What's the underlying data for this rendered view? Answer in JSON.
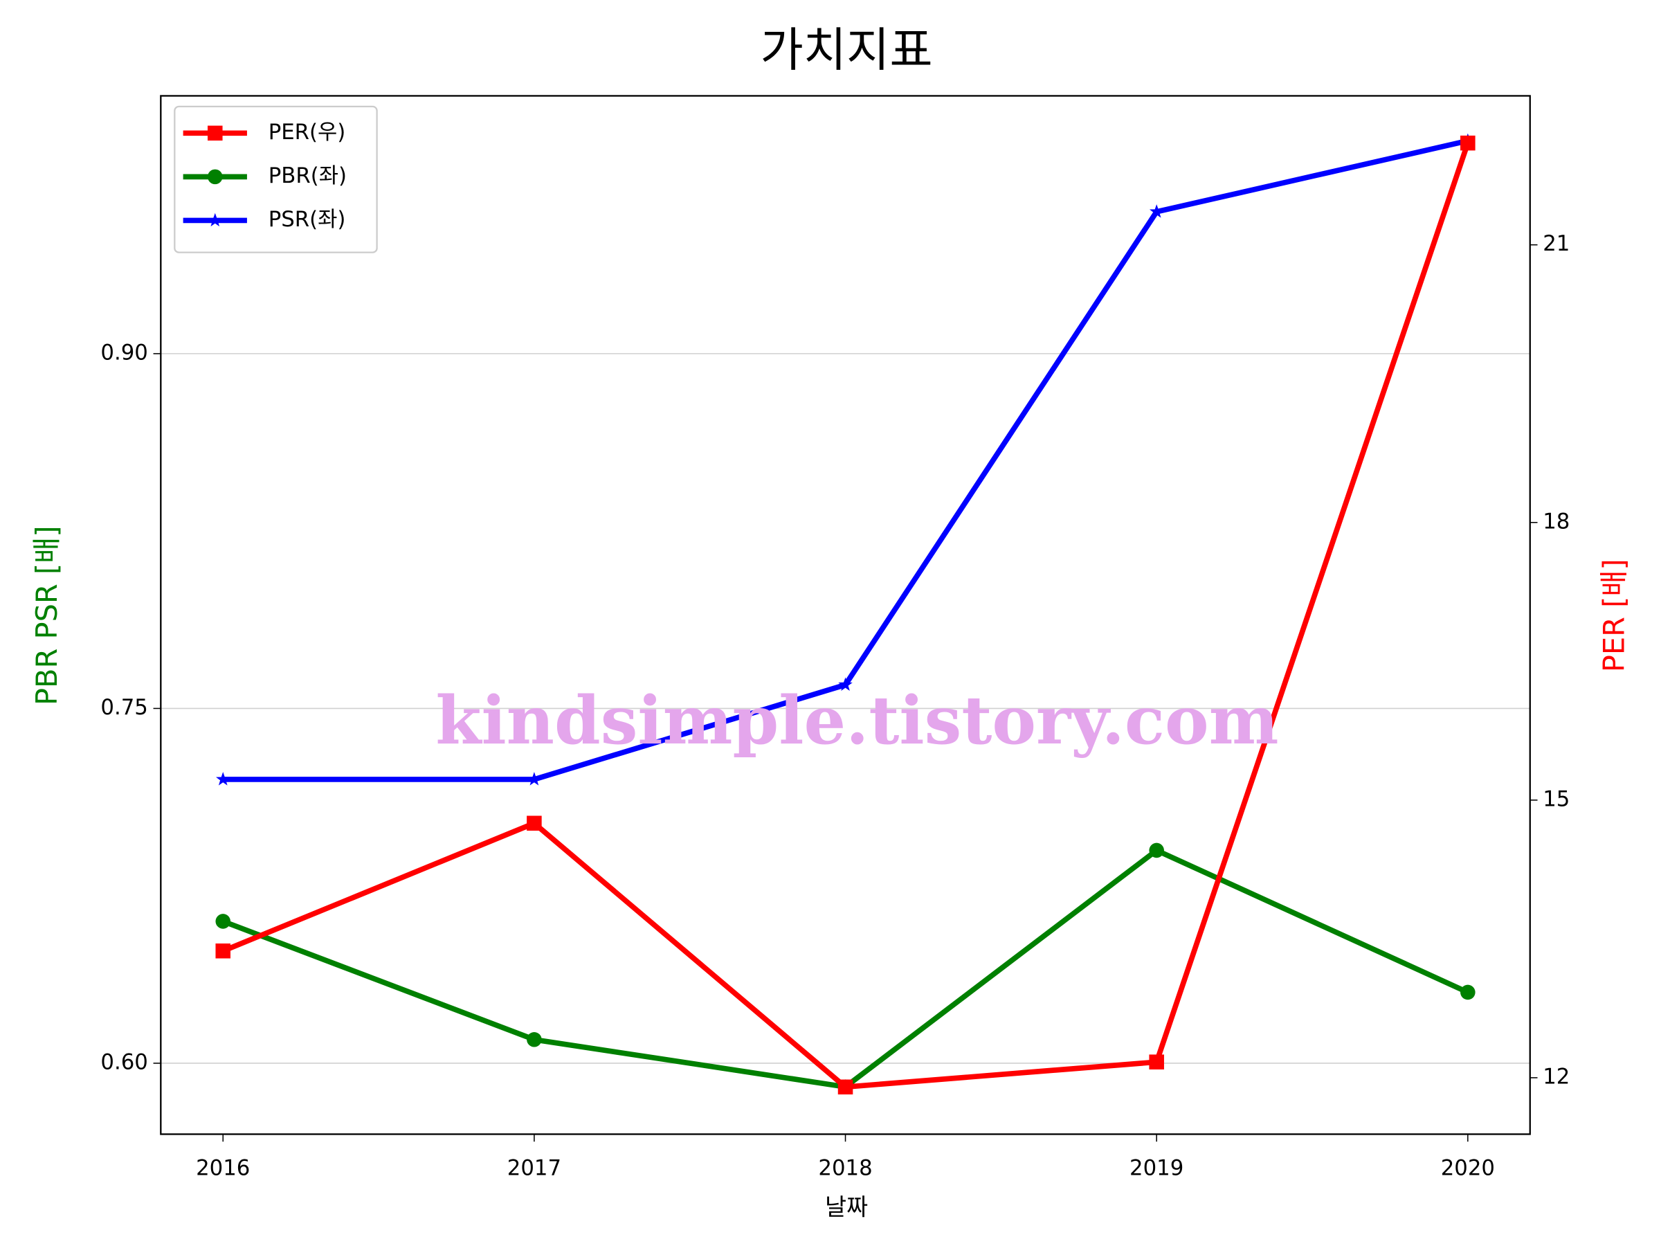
{
  "chart_data": {
    "type": "line",
    "title": "가치지표",
    "xlabel": "날짜",
    "ylabel": "PBR PSR [배]",
    "ylabel_color": "green",
    "y2label": "PER [배]",
    "y2label_color": "red",
    "x": [
      2016,
      2017,
      2018,
      2019,
      2020
    ],
    "xlim": [
      2015.8,
      2020.2
    ],
    "xticks": [
      2016,
      2017,
      2018,
      2019,
      2020
    ],
    "ylim": [
      0.57,
      1.009
    ],
    "yticks": [
      {
        "value": 0.6,
        "label": "0.60"
      },
      {
        "value": 0.75,
        "label": "0.75"
      },
      {
        "value": 0.9,
        "label": "0.90"
      }
    ],
    "y2lim": [
      11.39,
      22.61
    ],
    "y2ticks": [
      12,
      15,
      18,
      21
    ],
    "grid": true,
    "legend": "upper left",
    "series": [
      {
        "name": "PER(우)",
        "color": "red",
        "marker": "square",
        "axis": "y2",
        "values": [
          13.37,
          14.75,
          11.9,
          12.17,
          22.1
        ]
      },
      {
        "name": "PBR(좌)",
        "color": "green",
        "marker": "circle",
        "values": [
          0.66,
          0.61,
          0.59,
          0.69,
          0.63
        ]
      },
      {
        "name": "PSR(좌)",
        "color": "blue",
        "marker": "star",
        "values": [
          0.72,
          0.72,
          0.76,
          0.96,
          0.99
        ]
      }
    ],
    "watermark": {
      "text": "kindsimple.tistory.com",
      "color": "#e4a6ec"
    }
  }
}
